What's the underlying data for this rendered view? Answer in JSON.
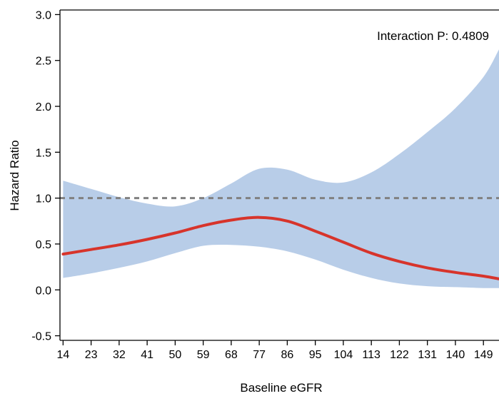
{
  "chart_data": {
    "type": "line",
    "title": "",
    "xlabel": "Baseline eGFR",
    "ylabel": "Hazard Ratio",
    "annotation": "Interaction P: 0.4809",
    "x_ticks": [
      14,
      23,
      32,
      41,
      50,
      59,
      68,
      77,
      86,
      95,
      104,
      113,
      122,
      131,
      140,
      149
    ],
    "y_ticks": [
      "-0.5",
      "0.0",
      "0.5",
      "1.0",
      "1.5",
      "2.0",
      "2.5",
      "3.0"
    ],
    "xlim": [
      13,
      154
    ],
    "ylim": [
      -0.55,
      3.05
    ],
    "reference_line": {
      "y": 1.0,
      "style": "dashed",
      "color": "#808080"
    },
    "colors": {
      "line": "#d7342b",
      "band": "#b8cde8"
    },
    "series": [
      {
        "x": [
          14,
          23,
          32,
          41,
          50,
          59,
          68,
          77,
          86,
          95,
          104,
          113,
          122,
          131,
          140,
          149,
          154
        ],
        "y": [
          0.39,
          0.44,
          0.49,
          0.55,
          0.62,
          0.7,
          0.76,
          0.79,
          0.75,
          0.64,
          0.52,
          0.4,
          0.31,
          0.24,
          0.19,
          0.15,
          0.12
        ],
        "lower": [
          0.13,
          0.18,
          0.24,
          0.31,
          0.4,
          0.48,
          0.49,
          0.47,
          0.42,
          0.33,
          0.22,
          0.13,
          0.07,
          0.04,
          0.03,
          0.02,
          0.02
        ],
        "upper": [
          1.19,
          1.1,
          1.01,
          0.94,
          0.91,
          1.0,
          1.16,
          1.32,
          1.31,
          1.2,
          1.17,
          1.28,
          1.48,
          1.72,
          1.98,
          2.32,
          2.62
        ]
      }
    ]
  }
}
